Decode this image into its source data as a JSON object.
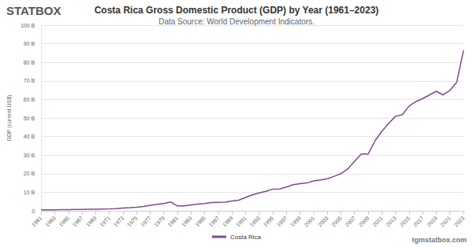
{
  "chart_data": {
    "type": "line",
    "title": "Costa Rica Gross Domestic Product (GDP) by Year (1961–2023)",
    "subtitle": "Data Source: World Development Indicators.",
    "logo": "STATBOX",
    "watermark": "tgmstatbox.com",
    "y_label": "GDP (current US$)",
    "x": [
      1961,
      1962,
      1963,
      1964,
      1965,
      1966,
      1967,
      1968,
      1969,
      1970,
      1971,
      1972,
      1973,
      1974,
      1975,
      1976,
      1977,
      1978,
      1979,
      1980,
      1981,
      1982,
      1983,
      1984,
      1985,
      1986,
      1987,
      1988,
      1989,
      1990,
      1991,
      1992,
      1993,
      1994,
      1995,
      1996,
      1997,
      1998,
      1999,
      2000,
      2001,
      2002,
      2003,
      2004,
      2005,
      2006,
      2007,
      2008,
      2009,
      2010,
      2011,
      2012,
      2013,
      2014,
      2015,
      2016,
      2017,
      2018,
      2019,
      2020,
      2021,
      2022,
      2023
    ],
    "series": [
      {
        "name": "Costa Rica",
        "color": "#7e4a8e",
        "values": [
          0.5,
          0.5,
          0.55,
          0.6,
          0.65,
          0.7,
          0.75,
          0.8,
          0.85,
          0.98,
          1.07,
          1.2,
          1.5,
          1.7,
          1.95,
          2.35,
          3.0,
          3.5,
          3.9,
          4.8,
          2.6,
          2.6,
          3.2,
          3.6,
          3.9,
          4.4,
          4.6,
          4.7,
          5.3,
          5.7,
          7.2,
          8.6,
          9.6,
          10.5,
          11.7,
          11.8,
          12.8,
          14.1,
          14.6,
          15.0,
          16.1,
          16.6,
          17.3,
          18.6,
          20.0,
          22.6,
          26.7,
          30.6,
          30.6,
          37.7,
          42.8,
          47.0,
          50.9,
          51.7,
          56.4,
          58.8,
          60.5,
          62.4,
          64.4,
          62.4,
          64.9,
          69.2,
          86.5
        ]
      }
    ],
    "xlim": [
      1961,
      2023
    ],
    "xticks": [
      1961,
      1963,
      1965,
      1967,
      1969,
      1971,
      1973,
      1975,
      1977,
      1979,
      1981,
      1983,
      1985,
      1987,
      1989,
      1991,
      1993,
      1995,
      1997,
      1999,
      2001,
      2003,
      2005,
      2007,
      2009,
      2011,
      2013,
      2015,
      2017,
      2019,
      2021,
      2023
    ],
    "ylim": [
      0,
      100
    ],
    "yticks": [
      0,
      {
        "value": 10,
        "label": "10 B"
      },
      {
        "value": 20,
        "label": "20 B"
      },
      {
        "value": 30,
        "label": "30 B"
      },
      {
        "value": 40,
        "label": "40 B"
      },
      {
        "value": 50,
        "label": "50 B"
      },
      {
        "value": 60,
        "label": "60 B"
      },
      {
        "value": 70,
        "label": "70 B"
      },
      {
        "value": 80,
        "label": "80 B"
      },
      {
        "value": 90,
        "label": "90 B"
      },
      {
        "value": 100,
        "label": "100 B"
      }
    ],
    "grid": true,
    "legend": "bottom"
  }
}
